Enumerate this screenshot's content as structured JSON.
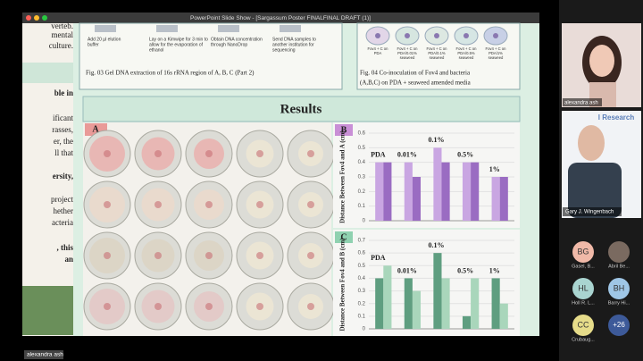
{
  "window": {
    "title": "PowerPoint Slide Show - [Sargassum Poster FINALFINAL DRAFT (1)]"
  },
  "left_column": [
    "verteb.",
    "mental",
    "culture.",
    "ble in",
    "ificant",
    "rasses,",
    "er, the",
    "ll that",
    "ersity,",
    "project",
    "hether",
    "acteria",
    ", this",
    "an"
  ],
  "fig3": {
    "steps": [
      [
        "Add 20 µl elution",
        "buffer"
      ],
      [
        "Lay on a Kimwipe for 3 min to",
        "allow for the evaporation of",
        "ethanol"
      ],
      [
        "Obtain DNA concentration",
        "through NanoDrop"
      ],
      [
        "Send DNA samples to",
        "another institution for",
        "sequencing"
      ]
    ],
    "caption": "Fig. 03 Gel DNA extraction of 16s rRNA region of A, B, C (Part 2)"
  },
  "fig4": {
    "labels": [
      [
        "Fov4 + C on",
        "PDA"
      ],
      [
        "Fov4 + C on",
        "PDA/0.01%",
        "seaweed"
      ],
      [
        "Fov4 + C on",
        "PDA/0.1%",
        "seaweed"
      ],
      [
        "Fov4 + C on",
        "PDA/0.5%",
        "seaweed"
      ],
      [
        "Fov4 + C on",
        "PDA/1%",
        "seaweed"
      ]
    ],
    "caption": [
      "Fig. 04 Co-inoculation of Fov4 and bacteria",
      "(A,B,C) on PDA + seaweed amended media"
    ]
  },
  "results": {
    "title": "Results",
    "panel": "A"
  },
  "chart_data": [
    {
      "type": "bar",
      "title": "B",
      "ylabel": "Distance Between Fov4 and A (cm)",
      "categories": [
        "PDA",
        "0.01%",
        "0.1%",
        "0.5%",
        "1%"
      ],
      "series": [
        {
          "color": "#c9a6e2",
          "values": [
            0.4,
            0.4,
            0.5,
            0.4,
            0.3
          ]
        },
        {
          "color": "#9a6cc2",
          "values": [
            0.4,
            0.3,
            0.4,
            0.4,
            0.3
          ]
        }
      ],
      "ylim": [
        0,
        0.6
      ],
      "yticks": [
        0,
        0.1,
        0.2,
        0.3,
        0.4,
        0.5,
        0.6
      ]
    },
    {
      "type": "bar",
      "title": "C",
      "ylabel": "Distance Between Fov4 and B (cm)",
      "categories": [
        "PDA",
        "0.01%",
        "0.1%",
        "0.5%",
        "1%"
      ],
      "series": [
        {
          "color": "#5f9e80",
          "values": [
            0.4,
            0.4,
            0.6,
            0.1,
            0.4
          ]
        },
        {
          "color": "#a9d6bb",
          "values": [
            0.5,
            0.3,
            0.4,
            0.4,
            0.2
          ]
        }
      ],
      "ylim": [
        0,
        0.7
      ],
      "yticks": [
        0,
        0.1,
        0.2,
        0.3,
        0.4,
        0.5,
        0.6,
        0.7
      ]
    }
  ],
  "zoom": {
    "self_tile_name": "alexandra ash",
    "speaker": "Gary J. Wingenbach",
    "backdrop": "l Research",
    "participants": [
      {
        "initials": "BG",
        "name": "Gasel, B..."
      },
      {
        "name": "Abril Be..."
      },
      {
        "initials": "HL",
        "name": "Holl R. L..."
      },
      {
        "initials": "BH",
        "name": "Barry Hi..."
      },
      {
        "initials": "CC",
        "name": "Crubaug..."
      }
    ],
    "more": "+26",
    "self_label": "alexandra ash"
  }
}
